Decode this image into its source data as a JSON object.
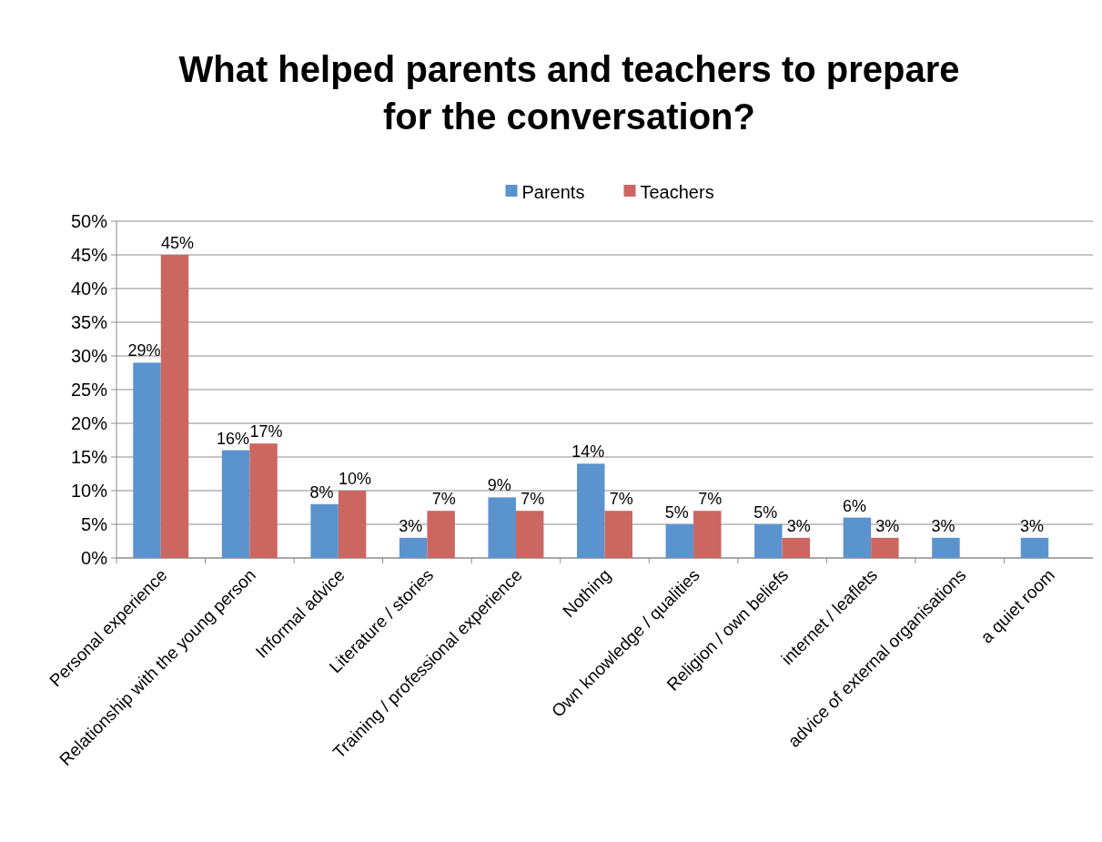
{
  "chart_data": {
    "type": "bar",
    "title": "What helped parents and teachers to prepare for the conversation?",
    "categories": [
      "Personal experience",
      "Relationship with the young person",
      "Informal advice",
      "Literature / stories",
      "Training / professional experience",
      "Nothing",
      "Own knowledge / qualities",
      "Religion / own beliefs",
      "internet / leaflets",
      "advice of external organisations",
      "a quiet room"
    ],
    "series": [
      {
        "name": "Parents",
        "color": "#5b93cf",
        "values": [
          29,
          16,
          8,
          3,
          9,
          14,
          5,
          5,
          6,
          3,
          3
        ],
        "value_labels": [
          "29%",
          "16%",
          "8%",
          "3%",
          "9%",
          "14%",
          "5%",
          "5%",
          "6%",
          "3%",
          "3%"
        ]
      },
      {
        "name": "Teachers",
        "color": "#cc6661",
        "values": [
          45,
          17,
          10,
          7,
          7,
          7,
          7,
          3,
          3,
          null,
          null
        ],
        "value_labels": [
          "45%",
          "17%",
          "10%",
          "7%",
          "7%",
          "7%",
          "7%",
          "3%",
          "3%",
          null,
          null
        ]
      }
    ],
    "ylim": [
      0,
      50
    ],
    "yticks": [
      {
        "value": 0,
        "label": "0%"
      },
      {
        "value": 5,
        "label": "5%"
      },
      {
        "value": 10,
        "label": "10%"
      },
      {
        "value": 15,
        "label": "15%"
      },
      {
        "value": 20,
        "label": "20%"
      },
      {
        "value": 25,
        "label": "25%"
      },
      {
        "value": 30,
        "label": "30%"
      },
      {
        "value": 35,
        "label": "35%"
      },
      {
        "value": 40,
        "label": "40%"
      },
      {
        "value": 45,
        "label": "45%"
      },
      {
        "value": 50,
        "label": "50%"
      }
    ],
    "grid": "y",
    "legend": "top"
  }
}
